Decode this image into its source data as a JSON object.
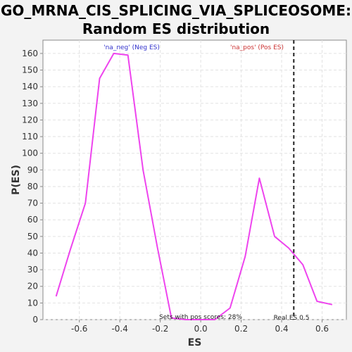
{
  "chart_data": {
    "type": "line",
    "title_line1": "GO_MRNA_CIS_SPLICING_VIA_SPLICEOSOME:",
    "title_line2": "Random ES distribution",
    "xlabel": "ES",
    "ylabel": "P(ES)",
    "xlim": [
      -0.78,
      0.72
    ],
    "ylim": [
      0,
      168
    ],
    "xticks": [
      -0.6,
      -0.4,
      -0.2,
      0.0,
      0.2,
      0.4,
      0.6
    ],
    "xtick_labels": [
      "-0.6",
      "-0.4",
      "-0.2",
      "0.0",
      "0.2",
      "0.4",
      "0.6"
    ],
    "yticks": [
      0,
      10,
      20,
      30,
      40,
      50,
      60,
      70,
      80,
      90,
      100,
      110,
      120,
      130,
      140,
      150,
      160
    ],
    "ytick_labels": [
      "0",
      "10",
      "20",
      "30",
      "40",
      "50",
      "60",
      "70",
      "80",
      "90",
      "100",
      "110",
      "120",
      "130",
      "140",
      "150",
      "160"
    ],
    "grid": true,
    "series": [
      {
        "color": "#ee44ee",
        "x": [
          -0.715,
          -0.645,
          -0.57,
          -0.5,
          -0.43,
          -0.36,
          -0.285,
          -0.215,
          -0.145,
          -0.075,
          0.0,
          0.07,
          0.145,
          0.22,
          0.29,
          0.365,
          0.435,
          0.505,
          0.575,
          0.65
        ],
        "y": [
          14,
          42,
          70,
          145,
          160,
          159,
          90,
          44,
          1,
          0,
          0,
          0,
          7,
          38,
          85,
          50,
          43,
          33,
          11,
          9
        ]
      }
    ],
    "real_es": 0.46,
    "annotations": {
      "neg_label": "'na_neg' (Neg ES)",
      "neg_color": "#3333cc",
      "pos_label": "'na_pos' (Pos ES)",
      "pos_color": "#cc3333",
      "pos_scores_text": "Sets with pos scores: 28%",
      "real_es_text": "Real ES 0.5"
    }
  }
}
